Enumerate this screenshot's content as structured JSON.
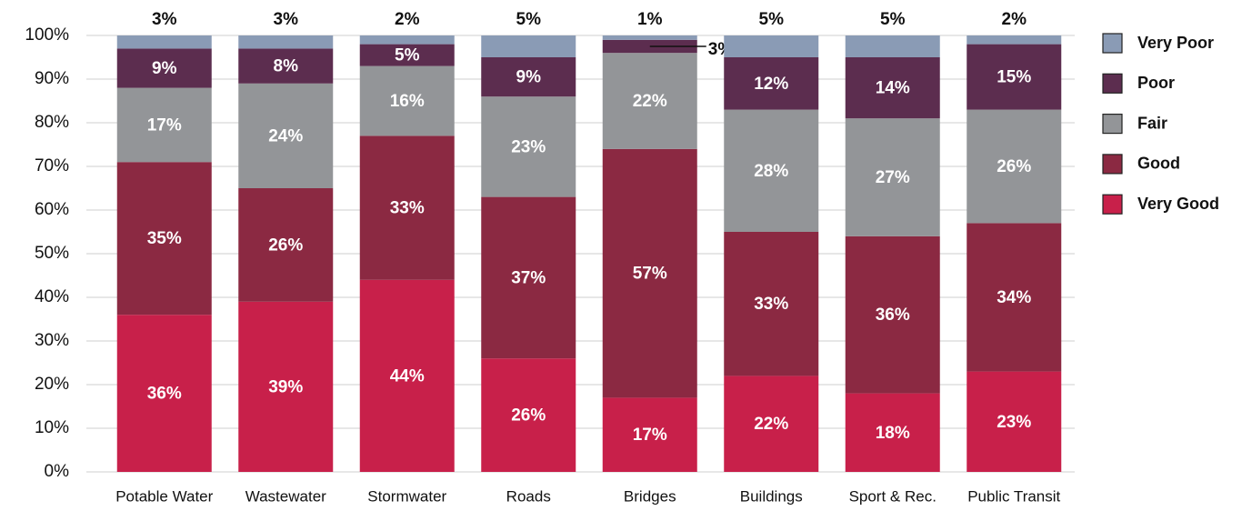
{
  "chart_data": {
    "type": "stacked_bar",
    "categories": [
      "Potable Water",
      "Wastewater",
      "Stormwater",
      "Roads",
      "Bridges",
      "Buildings",
      "Sport & Rec.",
      "Public Transit"
    ],
    "series": [
      {
        "name": "Very Good",
        "color": "#c8204a",
        "values": [
          36,
          39,
          44,
          26,
          17,
          22,
          18,
          23
        ],
        "value_labels": [
          "36%",
          "39%",
          "44%",
          "26%",
          "17%",
          "22%",
          "18%",
          "23%"
        ]
      },
      {
        "name": "Good",
        "color": "#8b2942",
        "values": [
          35,
          26,
          33,
          37,
          57,
          33,
          36,
          34
        ],
        "value_labels": [
          "35%",
          "26%",
          "33%",
          "37%",
          "57%",
          "33%",
          "36%",
          "34%"
        ]
      },
      {
        "name": "Fair",
        "color": "#939598",
        "values": [
          17,
          24,
          16,
          23,
          22,
          28,
          27,
          26
        ],
        "value_labels": [
          "17%",
          "24%",
          "16%",
          "23%",
          "22%",
          "28%",
          "27%",
          "26%"
        ]
      },
      {
        "name": "Poor",
        "color": "#5c2d4f",
        "values": [
          9,
          8,
          5,
          9,
          3,
          12,
          14,
          15
        ],
        "value_labels": [
          "9%",
          "8%",
          "5%",
          "9%",
          "3%",
          "12%",
          "14%",
          "15%"
        ]
      },
      {
        "name": "Very Poor",
        "color": "#8a9bb5",
        "values": [
          3,
          3,
          2,
          5,
          1,
          5,
          5,
          2
        ],
        "value_labels": [
          "3%",
          "3%",
          "2%",
          "5%",
          "1%",
          "5%",
          "5%",
          "2%"
        ]
      }
    ],
    "ylim": [
      0,
      100
    ],
    "yticks": [
      {
        "value": 0,
        "label": "0%"
      },
      {
        "value": 10,
        "label": "10%"
      },
      {
        "value": 20,
        "label": "20%"
      },
      {
        "value": 30,
        "label": "30%"
      },
      {
        "value": 40,
        "label": "40%"
      },
      {
        "value": 50,
        "label": "50%"
      },
      {
        "value": 60,
        "label": "60%"
      },
      {
        "value": 70,
        "label": "70%"
      },
      {
        "value": 80,
        "label": "80%"
      },
      {
        "value": 90,
        "label": "90%"
      },
      {
        "value": 100,
        "label": "100%"
      }
    ],
    "grid": true,
    "legend": "right"
  }
}
